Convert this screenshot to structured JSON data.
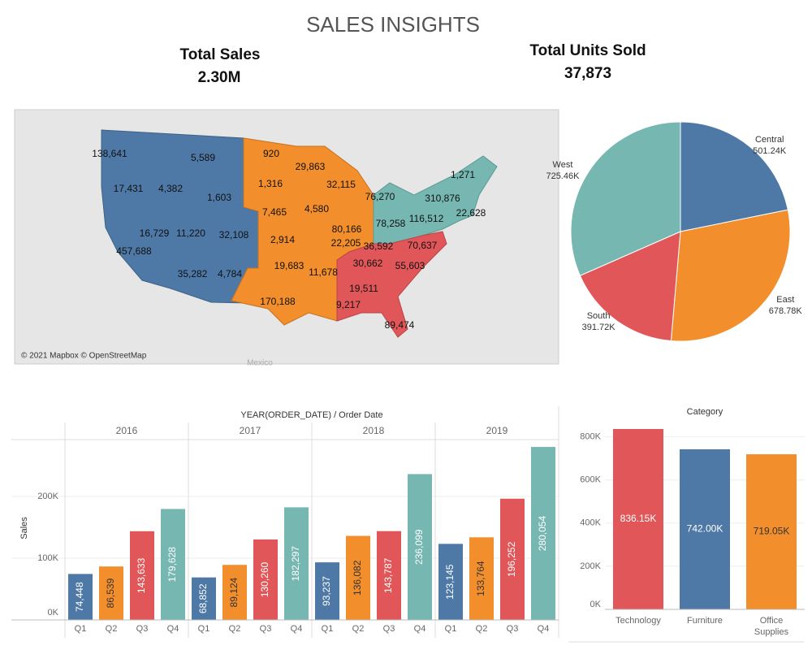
{
  "header": {
    "title": "SALES INSIGHTS"
  },
  "kpis": [
    {
      "label": "Total Sales",
      "value": "2.30M"
    },
    {
      "label": "Total Units Sold",
      "value": "37,873"
    }
  ],
  "chart_data": [
    {
      "type": "map",
      "credit": "© 2021 Mapbox © OpenStreetMap",
      "place_label": "Mexico",
      "values": [
        138641,
        5589,
        17431,
        4382,
        1603,
        16729,
        11220,
        32108,
        457688,
        35282,
        4784,
        920,
        29863,
        1316,
        32115,
        76270,
        7465,
        4580,
        80166,
        2914,
        22205,
        19683,
        170188,
        9217,
        1271,
        310876,
        22628,
        116512,
        78258,
        36592,
        70637,
        11678,
        30662,
        55603,
        19511,
        89474
      ],
      "value_labels": [
        "138,641",
        "5,589",
        "17,431",
        "4,382",
        "1,603",
        "16,729",
        "11,220",
        "32,108",
        "457,688",
        "35,282",
        "4,784",
        "920",
        "29,863",
        "1,316",
        "32,115",
        "76,270",
        "7,465",
        "4,580",
        "80,166",
        "2,914",
        "22,205",
        "19,683",
        "170,188",
        "9,217",
        "1,271",
        "310,876",
        "22,628",
        "116,512",
        "78,258",
        "36,592",
        "70,637",
        "11,678",
        "30,662",
        "55,603",
        "19,511",
        "89,474"
      ]
    },
    {
      "type": "pie",
      "categories": [
        "Central",
        "East",
        "South",
        "West"
      ],
      "values": [
        501.24,
        678.78,
        391.72,
        725.46
      ],
      "value_labels": [
        "501.24K",
        "678.78K",
        "391.72K",
        "725.46K"
      ],
      "colors": [
        "#4e79a7",
        "#f28e2b",
        "#e15759",
        "#76b7b2"
      ]
    },
    {
      "type": "grouped-bar",
      "title": "YEAR(ORDER_DATE) / Order Date",
      "y_label": "Sales",
      "categories": [
        "Q1",
        "Q2",
        "Q3",
        "Q4"
      ],
      "colors": [
        "#4e79a7",
        "#f28e2b",
        "#e15759",
        "#76b7b2"
      ],
      "label_colors": [
        "#ffffff",
        "#333333",
        "#ffffff",
        "#ffffff"
      ],
      "groups": [
        {
          "name": "2016",
          "values": [
            74448,
            86539,
            143633,
            179628
          ],
          "value_labels": [
            "74,448",
            "86,539",
            "143,633",
            "179,628"
          ]
        },
        {
          "name": "2017",
          "values": [
            68852,
            89124,
            130260,
            182297
          ],
          "value_labels": [
            "68,852",
            "89,124",
            "130,260",
            "182,297"
          ]
        },
        {
          "name": "2018",
          "values": [
            93237,
            136082,
            143787,
            236099
          ],
          "value_labels": [
            "93,237",
            "136,082",
            "143,787",
            "236,099"
          ]
        },
        {
          "name": "2019",
          "values": [
            123145,
            133764,
            196252,
            280054
          ],
          "value_labels": [
            "123,145",
            "133,764",
            "196,252",
            "280,054"
          ]
        }
      ],
      "ylim": [
        0,
        292000
      ],
      "yticks": [
        {
          "value": 0,
          "label": "0K"
        },
        {
          "value": 100000,
          "label": "100K"
        },
        {
          "value": 200000,
          "label": "200K"
        }
      ],
      "grid": true
    },
    {
      "type": "bar",
      "title": "Category",
      "categories": [
        "Technology",
        "Furniture",
        "Office Supplies"
      ],
      "values": [
        836150,
        742000,
        719050
      ],
      "value_labels": [
        "836.15K",
        "742.00K",
        "719.05K"
      ],
      "colors": [
        "#e15759",
        "#4e79a7",
        "#f28e2b"
      ],
      "label_colors": [
        "#ffffff",
        "#ffffff",
        "#333333"
      ],
      "ylim": [
        0,
        870000
      ],
      "yticks": [
        {
          "value": 0,
          "label": "0K"
        },
        {
          "value": 200000,
          "label": "200K"
        },
        {
          "value": 400000,
          "label": "400K"
        },
        {
          "value": 600000,
          "label": "600K"
        },
        {
          "value": 800000,
          "label": "800K"
        }
      ],
      "grid": true
    }
  ]
}
